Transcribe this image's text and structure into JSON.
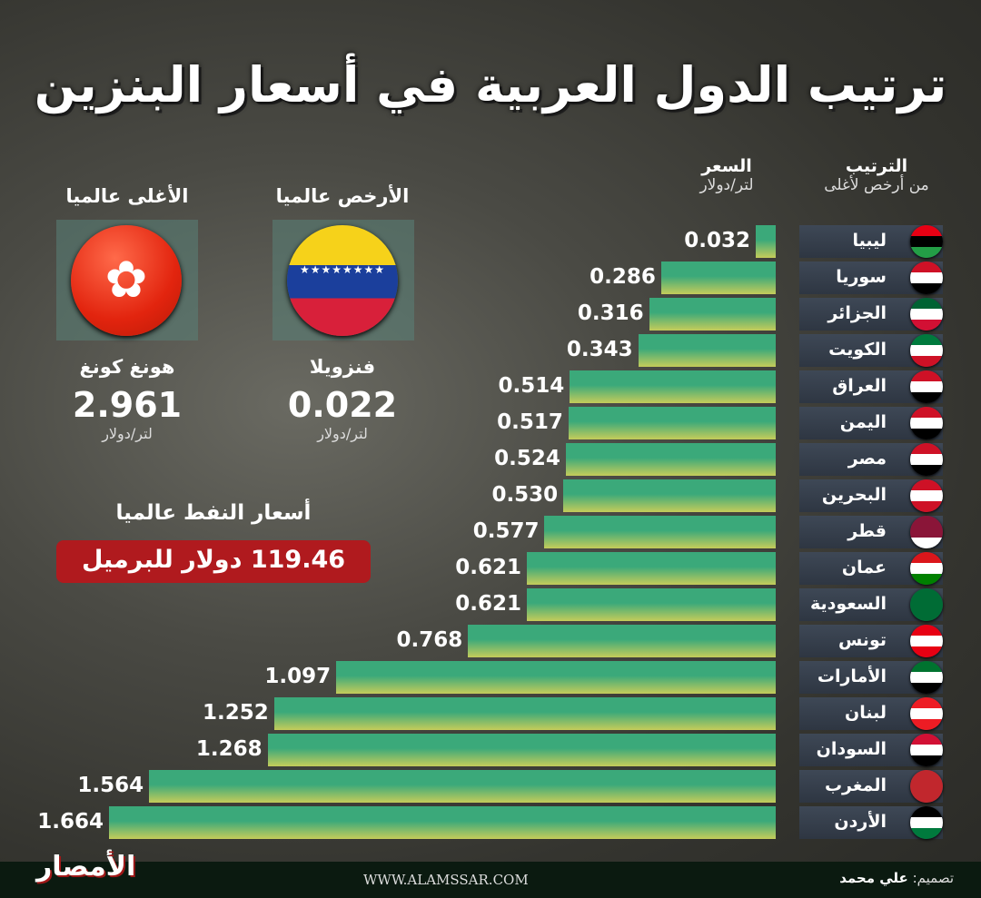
{
  "title": "ترتيب الدول العربية في أسعار البنزين",
  "headers": {
    "rank_title": "الترتيب",
    "rank_sub": "من أرخص لأغلى",
    "price_title": "السعر",
    "price_unit": "لتر/دولار"
  },
  "chart_data": {
    "type": "bar",
    "orientation": "horizontal",
    "title": "ترتيب الدول العربية في أسعار البنزين",
    "xlabel": "السعر لتر/دولار",
    "ylabel": "الترتيب من أرخص لأغلى",
    "xlim": [
      0,
      1.664
    ],
    "categories": [
      "ليبيا",
      "سوريا",
      "الجزائر",
      "الكويت",
      "العراق",
      "اليمن",
      "مصر",
      "البحرين",
      "قطر",
      "عمان",
      "السعودية",
      "تونس",
      "الأمارات",
      "لبنان",
      "السودان",
      "المغرب",
      "الأردن"
    ],
    "values": [
      0.032,
      0.286,
      0.316,
      0.343,
      0.514,
      0.517,
      0.524,
      0.53,
      0.577,
      0.621,
      0.621,
      0.768,
      1.097,
      1.252,
      1.268,
      1.564,
      1.664
    ],
    "labels": [
      "0.032",
      "0.286",
      "0.316",
      "0.343",
      "0.514",
      "0.517",
      "0.524",
      "0.530",
      "0.577",
      "0.621",
      "0.621",
      "0.768",
      "1.097",
      "1.252",
      "1.268",
      "1.564",
      "1.664"
    ]
  },
  "flags": [
    [
      "#e70013",
      "#000000",
      "#239e46"
    ],
    [
      "#ce1126",
      "#ffffff",
      "#000000"
    ],
    [
      "#006233",
      "#ffffff",
      "#d21034"
    ],
    [
      "#007a3d",
      "#ffffff",
      "#ce1126"
    ],
    [
      "#ce1126",
      "#ffffff",
      "#000000"
    ],
    [
      "#ce1126",
      "#ffffff",
      "#000000"
    ],
    [
      "#ce1126",
      "#ffffff",
      "#000000"
    ],
    [
      "#ce1126",
      "#ffffff",
      "#ce1126"
    ],
    [
      "#8a1538",
      "#8a1538",
      "#ffffff"
    ],
    [
      "#db161b",
      "#ffffff",
      "#008000"
    ],
    [
      "#006c35",
      "#006c35",
      "#006c35"
    ],
    [
      "#e70013",
      "#ffffff",
      "#e70013"
    ],
    [
      "#00732f",
      "#ffffff",
      "#000000"
    ],
    [
      "#ed1c24",
      "#ffffff",
      "#ed1c24"
    ],
    [
      "#d21034",
      "#ffffff",
      "#000000"
    ],
    [
      "#c1272d",
      "#c1272d",
      "#c1272d"
    ],
    [
      "#000000",
      "#ffffff",
      "#007a3d"
    ]
  ],
  "cheapest": {
    "label": "الأرخص عالميا",
    "country": "فنزويلا",
    "value": "0.022",
    "unit": "لتر/دولار"
  },
  "most_expensive": {
    "label": "الأغلى عالميا",
    "country": "هونغ كونغ",
    "value": "2.961",
    "unit": "لتر/دولار"
  },
  "oil": {
    "label": "أسعار النفط عالميا",
    "value": "119.46 دولار للبرميل"
  },
  "footer": {
    "logo": "الأمصار",
    "url": "WWW.ALAMSSAR.COM",
    "design_label": "تصميم:",
    "designer": "علي محمد"
  }
}
